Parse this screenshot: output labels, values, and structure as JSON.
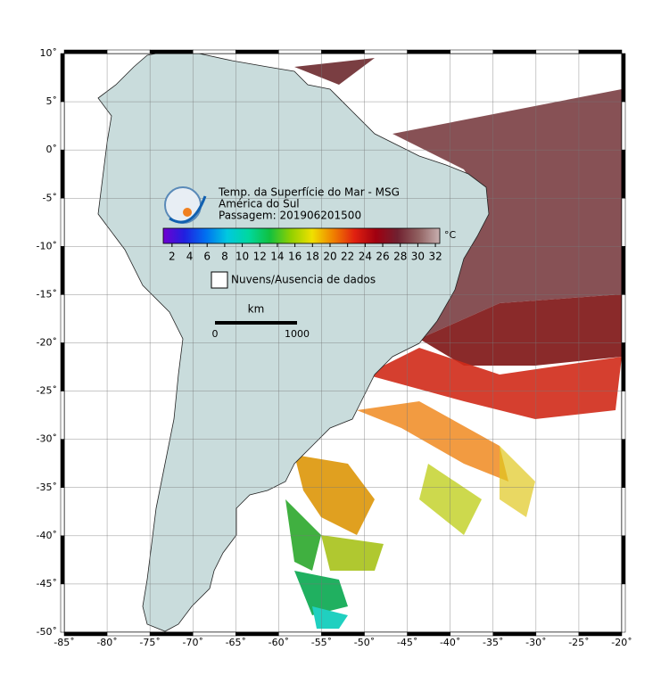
{
  "map_data": {
    "title_lines": [
      "Temp. da Superfície do Mar - MSG",
      "América do Sul",
      "Passagem: 201906201500"
    ],
    "lonlim": [
      -85,
      -20
    ],
    "latlim": [
      -50,
      10
    ],
    "lonticks": [
      {
        "value": -85,
        "label": "-85˚"
      },
      {
        "value": -80,
        "label": "-80˚"
      },
      {
        "value": -75,
        "label": "-75˚"
      },
      {
        "value": -70,
        "label": "-70˚"
      },
      {
        "value": -65,
        "label": "-65˚"
      },
      {
        "value": -60,
        "label": "-60˚"
      },
      {
        "value": -55,
        "label": "-55˚"
      },
      {
        "value": -50,
        "label": "-50˚"
      },
      {
        "value": -45,
        "label": "-45˚"
      },
      {
        "value": -40,
        "label": "-40˚"
      },
      {
        "value": -35,
        "label": "-35˚"
      },
      {
        "value": -30,
        "label": "-30˚"
      },
      {
        "value": -25,
        "label": "-25˚"
      },
      {
        "value": -20,
        "label": "-20˚"
      }
    ],
    "latticks": [
      {
        "value": 10,
        "label": "10˚"
      },
      {
        "value": 5,
        "label": "5˚"
      },
      {
        "value": 0,
        "label": "0˚"
      },
      {
        "value": -5,
        "label": "-5˚"
      },
      {
        "value": -10,
        "label": "-10˚"
      },
      {
        "value": -15,
        "label": "-15˚"
      },
      {
        "value": -20,
        "label": "-20˚"
      },
      {
        "value": -25,
        "label": "-25˚"
      },
      {
        "value": -30,
        "label": "-30˚"
      },
      {
        "value": -35,
        "label": "-35˚"
      },
      {
        "value": -40,
        "label": "-40˚"
      },
      {
        "value": -45,
        "label": "-45˚"
      },
      {
        "value": -50,
        "label": "-50˚"
      }
    ],
    "grid": true,
    "colorbar": {
      "unit": "°C",
      "range": [
        1,
        32.5
      ],
      "ticks": [
        2,
        4,
        6,
        8,
        10,
        12,
        14,
        16,
        18,
        20,
        22,
        24,
        26,
        28,
        30,
        32
      ],
      "colors": [
        "#7000d0",
        "#2020e0",
        "#0070f0",
        "#00c8e0",
        "#00d8a0",
        "#10c040",
        "#90d000",
        "#f0e000",
        "#f08000",
        "#e02010",
        "#a00010",
        "#702030",
        "#906060",
        "#c8b0b0"
      ]
    },
    "legend": "Nuvens/Ausencia de dados",
    "scale_bar": {
      "unit": "km",
      "labels": [
        0,
        1000
      ]
    }
  }
}
